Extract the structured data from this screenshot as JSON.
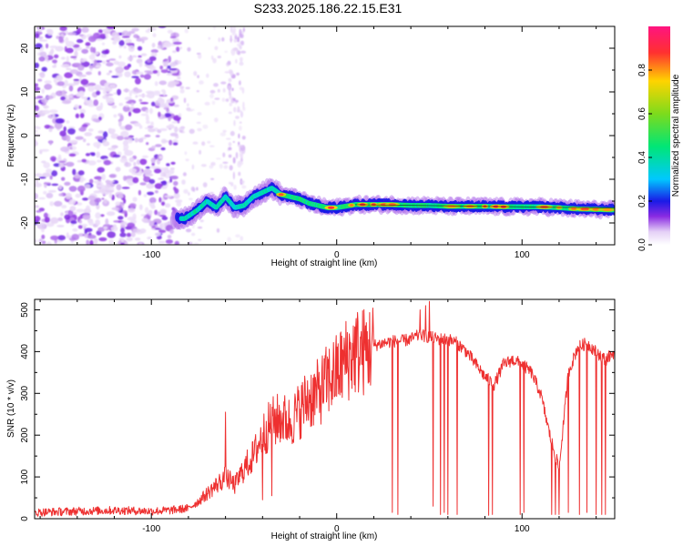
{
  "figure": {
    "title": "S233.2025.186.22.15.E31"
  },
  "chart_data": [
    {
      "type": "heatmap",
      "title": "S233.2025.186.22.15.E31",
      "xlabel": "Height of straight line (km)",
      "ylabel": "Frequency (Hz)",
      "xlim": [
        -163,
        150
      ],
      "ylim": [
        -25,
        25
      ],
      "x_ticks": [
        -100,
        0,
        100
      ],
      "y_ticks": [
        -20,
        -10,
        0,
        10,
        20
      ],
      "colorbar": {
        "label": "Normalized spectral amplitude",
        "range": [
          0,
          1
        ],
        "ticks": [
          "0.0",
          "0.2",
          "0.4",
          "0.6",
          "0.8"
        ],
        "colormap": "rainbow (white/purple low to red/magenta high)"
      },
      "ridge": {
        "description": "dominant frequency track",
        "x": [
          -82,
          -75,
          -70,
          -65,
          -60,
          -55,
          -50,
          -45,
          -40,
          -35,
          -30,
          -25,
          -20,
          -15,
          -10,
          -5,
          0,
          10,
          20,
          30,
          40,
          50,
          60,
          70,
          80,
          90,
          100,
          110,
          120,
          130,
          140,
          148
        ],
        "y": [
          -19,
          -17,
          -15,
          -16.5,
          -14,
          -16.5,
          -16,
          -14,
          -13,
          -12,
          -13.5,
          -14,
          -14.5,
          -15.5,
          -16,
          -16.5,
          -16.5,
          -15.8,
          -15.8,
          -15.8,
          -16,
          -16,
          -16.2,
          -16.2,
          -16.2,
          -16.3,
          -16.3,
          -16.3,
          -16.5,
          -16.8,
          -16.9,
          -17
        ]
      }
    },
    {
      "type": "line",
      "xlabel": "Height of straight line (km)",
      "ylabel": "SNR (10 * v/v)",
      "xlim": [
        -163,
        150
      ],
      "ylim": [
        0,
        525
      ],
      "x_ticks": [
        -100,
        0,
        100
      ],
      "y_ticks": [
        0,
        100,
        200,
        300,
        400,
        500
      ],
      "color": "#ee3030",
      "series": [
        {
          "envelope_x": [
            -163,
            -140,
            -120,
            -100,
            -90,
            -80,
            -75,
            -70,
            -65,
            -60,
            -55,
            -50,
            -45,
            -40,
            -35,
            -30,
            -25,
            -20,
            -15,
            -10,
            -5,
            0,
            5,
            10,
            15,
            20,
            25,
            30,
            35,
            40,
            45,
            50,
            55,
            60,
            65,
            70,
            75,
            80,
            85,
            90,
            95,
            100,
            105,
            110,
            112,
            115,
            118,
            120,
            125,
            130,
            135,
            140,
            145,
            150
          ],
          "envelope_y": [
            15,
            18,
            20,
            18,
            20,
            25,
            40,
            60,
            80,
            100,
            80,
            120,
            150,
            200,
            230,
            240,
            230,
            260,
            290,
            300,
            330,
            350,
            380,
            400,
            400,
            415,
            420,
            425,
            425,
            430,
            440,
            435,
            430,
            430,
            420,
            400,
            370,
            340,
            320,
            370,
            380,
            370,
            350,
            300,
            260,
            200,
            150,
            120,
            350,
            410,
            420,
            400,
            380,
            400
          ],
          "spikes_up_x": [
            -60,
            45,
            48,
            50
          ],
          "spikes_up_y": [
            255,
            500,
            510,
            520
          ],
          "dropouts_x": [
            -40,
            -35,
            30,
            33,
            48,
            52,
            56,
            58,
            60,
            65,
            82,
            84,
            99,
            101,
            116,
            118,
            120,
            125,
            131,
            135,
            140,
            143,
            145
          ],
          "dropouts_y": [
            45,
            55,
            15,
            10,
            25,
            30,
            10,
            15,
            10,
            10,
            8,
            10,
            10,
            15,
            10,
            10,
            10,
            15,
            10,
            15,
            10,
            10,
            10
          ]
        }
      ]
    }
  ]
}
